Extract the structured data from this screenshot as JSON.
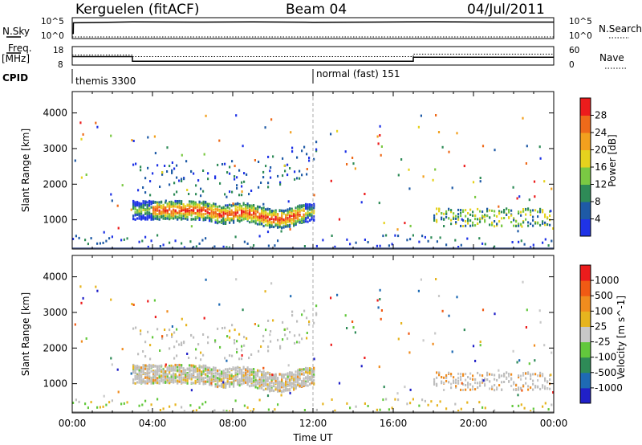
{
  "header": {
    "title": "Kerguelen (fitACF)",
    "beam": "Beam 04",
    "date": "04/Jul/2011"
  },
  "side_labels": {
    "nsky": "N.Sky",
    "freq_line1": "Freq.",
    "freq_line2": "[MHz]",
    "cpid": "CPID",
    "nsearch": "N.Search",
    "nave": "Nave"
  },
  "nsky_ticks": [
    "10^5",
    "10^0"
  ],
  "nsearch_ticks": [
    "10^5",
    "10^0"
  ],
  "freq_ticks": [
    "18",
    "8"
  ],
  "nave_ticks": [
    "60",
    "0"
  ],
  "cpid_segments": [
    {
      "label": "themis 3300",
      "start_hour": 0
    },
    {
      "label": "normal (fast) 151",
      "start_hour": 12
    }
  ],
  "colors": {
    "power": [
      "#1f33e6",
      "#1e5aa6",
      "#2e8b57",
      "#7ac943",
      "#e6d21e",
      "#f2a01e",
      "#ee6a1a",
      "#ec1c1c"
    ],
    "velocity": [
      "#2020c8",
      "#1e6ab4",
      "#2e8b57",
      "#62c83c",
      "#c8c8c8",
      "#e6b41e",
      "#f08c1e",
      "#f05a14",
      "#ec1c1c"
    ],
    "ground_scatter": "#bebebe"
  },
  "chart_data": [
    {
      "type": "line",
      "name": "nsky-nsearch",
      "ylabel": "N.Sky",
      "ylabel_right": "N.Search",
      "x": [
        0,
        0.05,
        0.06,
        3,
        6,
        9,
        12,
        15,
        18,
        21,
        24
      ],
      "nsky": [
        0.2,
        0.2,
        0.8,
        0.85,
        0.84,
        0.85,
        0.83,
        0.84,
        0.86,
        0.84,
        0.84
      ],
      "nsearch": [
        0.0,
        0.0,
        0.0,
        0.0,
        0.0,
        0.0,
        0.0,
        0.0,
        0.0,
        0.0,
        0.0
      ]
    },
    {
      "type": "line",
      "name": "freq-nave",
      "ylabel": "Freq. [MHz]",
      "ylabel_right": "Nave",
      "x_freq": [
        0,
        3,
        3,
        17,
        17,
        24
      ],
      "freq": [
        12.5,
        12.5,
        9.8,
        9.8,
        12.2,
        12.2
      ],
      "x_nave": [
        0,
        3,
        3,
        17,
        17,
        24
      ],
      "nave": [
        33,
        33,
        27,
        27,
        36,
        36
      ],
      "freq_range": [
        8,
        18
      ],
      "nave_range": [
        0,
        60
      ]
    },
    {
      "type": "heatmap",
      "name": "power",
      "ylabel": "Slant Range [km]",
      "colorbar_label": "Power [dB]",
      "colorbar_ticks": [
        "28",
        "24",
        "20",
        "16",
        "12",
        "8",
        "4"
      ],
      "ylim": [
        180,
        4600
      ],
      "y_ticks": [
        "4000",
        "3000",
        "2000",
        "1000"
      ],
      "x_ticks": [
        "00:00",
        "04:00",
        "08:00",
        "12:00",
        "16:00",
        "20:00",
        "00:00"
      ]
    },
    {
      "type": "heatmap",
      "name": "velocity",
      "ylabel": "Slant Range [km]",
      "xlabel": "Time UT",
      "colorbar_label": "Velocity [m s^-1]",
      "colorbar_ticks": [
        "1000",
        "500",
        "100",
        "25",
        "-25",
        "-100",
        "-500",
        "-1000"
      ],
      "ylim": [
        180,
        4600
      ],
      "y_ticks": [
        "4000",
        "3000",
        "2000",
        "1000"
      ],
      "x_ticks": [
        "00:00",
        "04:00",
        "08:00",
        "12:00",
        "16:00",
        "20:00",
        "00:00"
      ]
    }
  ]
}
